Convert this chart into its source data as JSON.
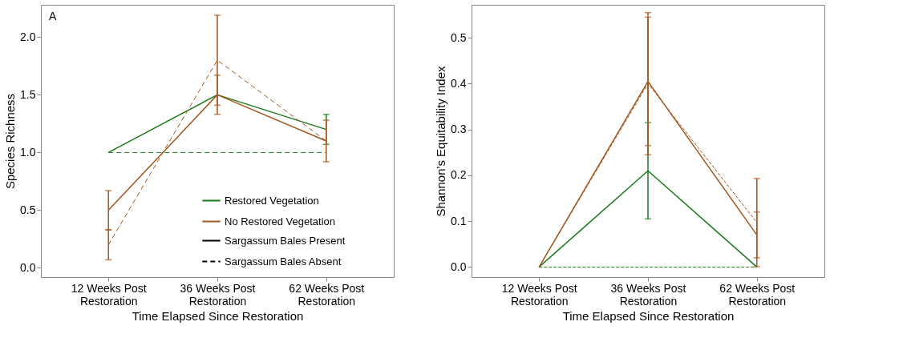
{
  "chart_data": [
    {
      "type": "line",
      "title": "A",
      "xlabel": "Time Elapsed Since Restoration",
      "ylabel": "Species Richness",
      "categories": [
        "12 Weeks Post Restoration",
        "36 Weeks Post Restoration",
        "62 Weeks Post Restoration"
      ],
      "ylim": [
        -0.08,
        2.28
      ],
      "yticks": [
        {
          "value": 0,
          "label": "0.0"
        },
        {
          "value": 0.5,
          "label": "0.5"
        },
        {
          "value": 1,
          "label": "1.0"
        },
        {
          "value": 1.5,
          "label": "1.5"
        },
        {
          "value": 2,
          "label": "2.0"
        }
      ],
      "grid": false,
      "legend": "bottom right",
      "annotations": [
        "Sargassum Bales Present",
        "Sargassum Bales Absent"
      ],
      "series": [
        {
          "name": "Restored Vegetation",
          "color": "#1a7a1a",
          "values": [
            1.0,
            1.5,
            1.2
          ],
          "errors": [
            null,
            null,
            0.13
          ],
          "line_style": "solid"
        },
        {
          "color": "#1a7a1a",
          "values": [
            1.0,
            1.0,
            1.0
          ],
          "line_style": "dashed"
        },
        {
          "name": "No Restored Vegetation",
          "color": "#a5561f",
          "values": [
            0.5,
            1.5,
            1.1
          ],
          "errors": [
            0.17,
            0.17,
            0.18
          ],
          "line_style": "solid"
        },
        {
          "color": "#a5561f",
          "values": [
            0.2,
            1.8,
            1.1
          ],
          "errors": [
            0.13,
            0.39,
            null
          ],
          "line_style": "dashed"
        }
      ]
    },
    {
      "type": "line",
      "xlabel": "Time Elapsed Since Restoration",
      "ylabel": "Shannon's Equitability Index",
      "categories": [
        "12 Weeks Post Restoration",
        "36 Weeks Post Restoration",
        "62 Weeks Post Restoration"
      ],
      "ylim": [
        -0.022,
        0.572
      ],
      "yticks": [
        {
          "value": 0,
          "label": "0.0"
        },
        0.1,
        0.2,
        0.3,
        0.4,
        0.5
      ],
      "grid": false,
      "series": [
        {
          "color": "#1a7a1a",
          "values": [
            0,
            0.21,
            0
          ],
          "errors": [
            null,
            0.105,
            null
          ],
          "line_style": "solid"
        },
        {
          "color": "#1a7a1a",
          "values": [
            0,
            0,
            0
          ],
          "line_style": "dashed"
        },
        {
          "color": "#a5561f",
          "values": [
            0,
            0.405,
            0.07
          ],
          "errors": [
            null,
            0.14,
            0.05
          ],
          "line_style": "solid"
        },
        {
          "color": "#a5561f",
          "values": [
            0,
            0.4,
            0.097
          ],
          "errors": [
            null,
            0.155,
            0.096
          ],
          "line_style": "dashed"
        }
      ]
    }
  ]
}
